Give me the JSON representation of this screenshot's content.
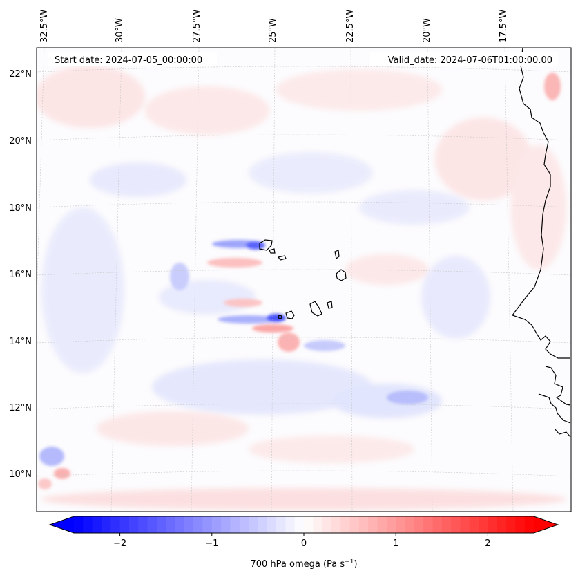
{
  "map": {
    "lon_labels": [
      "32.5°W",
      "30°W",
      "27.5°W",
      "25°W",
      "22.5°W",
      "20°W",
      "17.5°W"
    ],
    "lat_labels": [
      "22°N",
      "20°N",
      "18°N",
      "16°N",
      "14°N",
      "12°N",
      "10°N"
    ],
    "start_label": "Start date: 2024-07-05_00:00:00",
    "valid_label": "Valid_date: 2024-07-06T01:00:00.00",
    "colors": {
      "negative": "#0000ff",
      "neutral": "#ffffff",
      "positive": "#ff0000",
      "coast": "#000000"
    }
  },
  "colorbar": {
    "label": "700 hPa omega (Pa s",
    "label_sup": "−1",
    "label_end": ")",
    "vmin": -2.5,
    "vmax": 2.5,
    "ticks": [
      {
        "value": -2,
        "label": "−2"
      },
      {
        "value": -1,
        "label": "−1"
      },
      {
        "value": 0,
        "label": "0"
      },
      {
        "value": 1,
        "label": "1"
      },
      {
        "value": 2,
        "label": "2"
      }
    ]
  }
}
